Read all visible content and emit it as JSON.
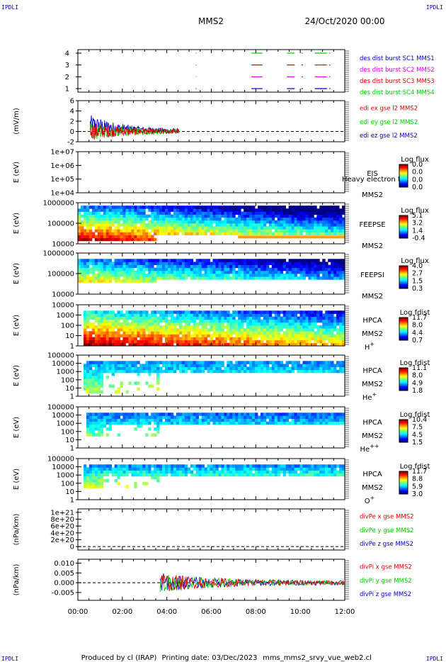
{
  "header": {
    "corner_label": "IPDLI",
    "spacecraft": "MMS2",
    "date": "24/Oct/2020 00:00"
  },
  "footer": {
    "produced_by": "Produced by cl (IRAP)",
    "printing_date": "Printing date: 03/Dec/2023",
    "script_name": "mms_mms2_srvy_vue_web2.cl"
  },
  "colors": {
    "blue": "#0000cc",
    "red": "#dd0000",
    "green": "#00cc00",
    "magenta": "#dd00dd"
  },
  "chart_data": [
    {
      "type": "line",
      "id": "availability",
      "ylim": [
        0.7,
        4.3
      ],
      "y_ticks": [
        "1",
        "2",
        "3",
        "4"
      ],
      "series": [
        {
          "name": "des dist burst SC1 MMS1",
          "color": "#0000cc",
          "level": 1,
          "intervals": [
            [
              5.3,
              5.33
            ],
            [
              7.8,
              8.3
            ],
            [
              9.4,
              9.75
            ],
            [
              10.05,
              10.12
            ],
            [
              10.65,
              11.2
            ],
            [
              11.3,
              11.35
            ]
          ]
        },
        {
          "name": "des dist burst SC2 MMS2",
          "color": "#dd00dd",
          "level": 2,
          "intervals": [
            [
              5.3,
              5.33
            ],
            [
              7.8,
              8.3
            ],
            [
              9.4,
              9.75
            ],
            [
              10.05,
              10.12
            ],
            [
              10.65,
              11.2
            ],
            [
              11.3,
              11.35
            ]
          ]
        },
        {
          "name": "des dist burst SC3 MMS3",
          "color": "#dd0000",
          "level": 3,
          "intervals": [
            [
              5.3,
              5.33
            ],
            [
              7.8,
              8.3
            ],
            [
              9.4,
              9.75
            ],
            [
              10.05,
              10.12
            ],
            [
              10.65,
              11.2
            ],
            [
              11.3,
              11.35
            ]
          ]
        },
        {
          "name": "des dist burst SC4 MMS4",
          "color": "#00cc00",
          "level": 4,
          "intervals": [
            [
              5.3,
              5.33
            ],
            [
              7.8,
              8.3
            ],
            [
              9.4,
              9.75
            ],
            [
              10.05,
              10.12
            ],
            [
              10.65,
              11.2
            ],
            [
              11.3,
              11.35
            ]
          ]
        }
      ]
    },
    {
      "type": "line",
      "id": "edi",
      "ylabel": "(mV/m)",
      "ylim": [
        -2,
        6
      ],
      "y_ticks": [
        "-2",
        "0",
        "2",
        "4",
        "6"
      ],
      "zero_line": true,
      "series": [
        {
          "name": "edi ex gse l2 MMS2",
          "color": "#dd0000"
        },
        {
          "name": "edi ey gse l2 MMS2",
          "color": "#00cc00"
        },
        {
          "name": "edi ez gse l2 MMS2",
          "color": "#0000cc"
        }
      ],
      "time_range_hours": [
        0.55,
        4.55
      ]
    },
    {
      "type": "heatmap",
      "id": "eis",
      "ylabel": "E (eV)",
      "y_ticks": [
        "1e+04",
        "1e+05",
        "1e+06",
        "1e+07"
      ],
      "instrument": "EIS",
      "spacecraft": "MMS2",
      "overlay_text": "Heavy electron to",
      "colorbar_title": "Log flux",
      "colorbar_ticks": [
        "0.0",
        "0.0",
        "0.0",
        "0.0"
      ],
      "empty": true
    },
    {
      "type": "heatmap",
      "id": "feepse",
      "ylabel": "E (eV)",
      "y_ticks": [
        "10000",
        "100000",
        "1000000"
      ],
      "instrument": "FEEPSE",
      "spacecraft": "MMS2",
      "colorbar_title": "Log flux",
      "colorbar_ticks": [
        "5.1",
        "3.2",
        "1.4",
        "-0.4"
      ]
    },
    {
      "type": "heatmap",
      "id": "feepsi",
      "ylabel": "E (eV)",
      "y_ticks": [
        "10000",
        "100000",
        "1000000"
      ],
      "instrument": "FEEPSI",
      "spacecraft": "MMS2",
      "colorbar_title": "Log flux",
      "colorbar_ticks": [
        "4.0",
        "2.7",
        "1.5",
        "0.3"
      ]
    },
    {
      "type": "heatmap",
      "id": "hpca_h",
      "ylabel": "E (eV)",
      "y_ticks": [
        "1",
        "10",
        "100",
        "1000",
        "10000"
      ],
      "instrument": "HPCA",
      "spacecraft": "MMS2",
      "species": "H",
      "charge": "+",
      "colorbar_title": "Log fdist",
      "colorbar_ticks": [
        "11.7",
        "8.0",
        "4.4",
        "0.7"
      ]
    },
    {
      "type": "heatmap",
      "id": "hpca_he",
      "ylabel": "E (eV)",
      "y_ticks": [
        "1",
        "10",
        "100",
        "1000",
        "10000",
        "100000"
      ],
      "instrument": "HPCA",
      "spacecraft": "MMS2",
      "species": "He",
      "charge": "+",
      "colorbar_title": "Log fdist",
      "colorbar_ticks": [
        "11.1",
        "8.0",
        "4.9",
        "1.8"
      ]
    },
    {
      "type": "heatmap",
      "id": "hpca_hepp",
      "ylabel": "E (eV)",
      "y_ticks": [
        "1",
        "10",
        "100",
        "1000",
        "10000",
        "100000"
      ],
      "instrument": "HPCA",
      "spacecraft": "MMS2",
      "species": "He",
      "charge": "++",
      "colorbar_title": "Log fdist",
      "colorbar_ticks": [
        "10.4",
        "7.5",
        "4.5",
        "1.5"
      ]
    },
    {
      "type": "heatmap",
      "id": "hpca_o",
      "ylabel": "E (eV)",
      "y_ticks": [
        "1",
        "10",
        "100",
        "1000",
        "10000",
        "100000"
      ],
      "instrument": "HPCA",
      "spacecraft": "MMS2",
      "species": "O",
      "charge": "+",
      "colorbar_title": "Log fdist",
      "colorbar_ticks": [
        "11.7",
        "8.8",
        "5.9",
        "3.0"
      ]
    },
    {
      "type": "line",
      "id": "divpe",
      "ylabel": "(nPa/km)",
      "ylim": [
        -1e+20,
        1.1e+21
      ],
      "y_ticks": [
        "0",
        "2e+20",
        "4e+20",
        "6e+20",
        "8e+20",
        "1e+21"
      ],
      "zero_line": true,
      "series": [
        {
          "name": "divPe x gse MMS2",
          "color": "#dd0000"
        },
        {
          "name": "divPe y gse MMS2",
          "color": "#00cc00"
        },
        {
          "name": "divPe z gse MMS2",
          "color": "#0000cc"
        }
      ]
    },
    {
      "type": "line",
      "id": "divpi",
      "ylabel": "(nPa/km)",
      "ylim": [
        -0.009,
        0.012
      ],
      "y_ticks": [
        "-0.005",
        "0.000",
        "0.005",
        "0.010"
      ],
      "zero_line": true,
      "series": [
        {
          "name": "divPi x gse MMS2",
          "color": "#dd0000"
        },
        {
          "name": "divPi y gse MMS2",
          "color": "#00cc00"
        },
        {
          "name": "divPi z gse MMS2",
          "color": "#0000cc"
        }
      ],
      "time_range_hours": [
        3.7,
        12.0
      ]
    }
  ],
  "x_axis": {
    "range_hours": [
      0,
      12
    ],
    "tick_labels": [
      "00:00",
      "02:00",
      "04:00",
      "06:00",
      "08:00",
      "10:00",
      "12:00"
    ]
  }
}
